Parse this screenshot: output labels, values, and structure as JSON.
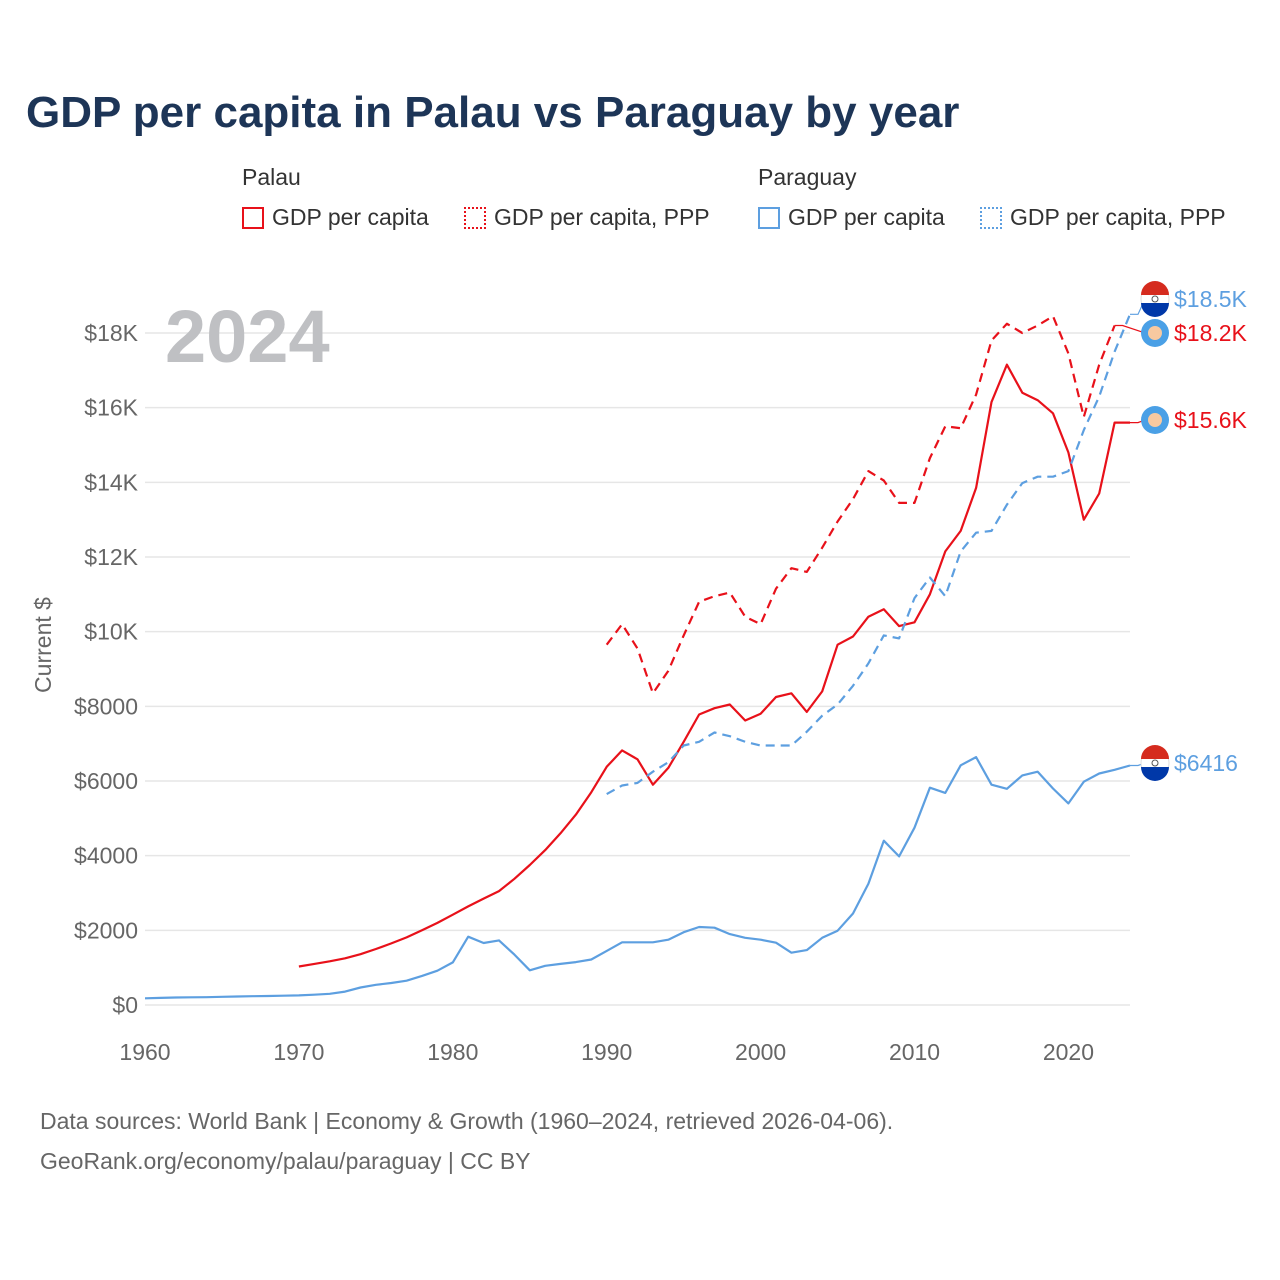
{
  "title": "GDP per capita in Palau vs Paraguay by year",
  "legend": {
    "palau": {
      "label": "Palau",
      "items": [
        {
          "label": "GDP per capita",
          "style": "solid"
        },
        {
          "label": "GDP per capita, PPP",
          "style": "dotted"
        }
      ]
    },
    "paraguay": {
      "label": "Paraguay",
      "items": [
        {
          "label": "GDP per capita",
          "style": "solid"
        },
        {
          "label": "GDP per capita, PPP",
          "style": "dotted"
        }
      ]
    }
  },
  "colors": {
    "palau": "#e8111a",
    "paraguay": "#5d9fe0",
    "grid": "#e6e6e6",
    "year": "#bfc0c3",
    "title": "#1d3557"
  },
  "footer": {
    "line1": "Data sources: World Bank | Economy & Growth (1960–2024, retrieved 2026-04-06).",
    "line2": "GeoRank.org/economy/palau/paraguay | CC BY"
  },
  "chart_data": {
    "type": "line",
    "year_label": "2024",
    "ylabel": "Current $",
    "xlim": [
      1960,
      2024
    ],
    "ylim": [
      0,
      18500
    ],
    "x_ticks": [
      1960,
      1970,
      1980,
      1990,
      2000,
      2010,
      2020
    ],
    "y_ticks": [
      {
        "value": 0,
        "label": "$0"
      },
      {
        "value": 2000,
        "label": "$2000"
      },
      {
        "value": 4000,
        "label": "$4000"
      },
      {
        "value": 6000,
        "label": "$6000"
      },
      {
        "value": 8000,
        "label": "$8000"
      },
      {
        "value": 10000,
        "label": "$10K"
      },
      {
        "value": 12000,
        "label": "$12K"
      },
      {
        "value": 14000,
        "label": "$14K"
      },
      {
        "value": 16000,
        "label": "$16K"
      },
      {
        "value": 18000,
        "label": "$18K"
      }
    ],
    "series": [
      {
        "name": "Palau GDP per capita",
        "country": "palau",
        "dashed": false,
        "end_label": "$15.6K",
        "end_value": 15600,
        "x": [
          1970,
          1971,
          1972,
          1973,
          1974,
          1975,
          1976,
          1977,
          1978,
          1979,
          1980,
          1981,
          1982,
          1983,
          1984,
          1985,
          1986,
          1987,
          1988,
          1989,
          1990,
          1991,
          1992,
          1993,
          1994,
          1995,
          1996,
          1997,
          1998,
          1999,
          2000,
          2001,
          2002,
          2003,
          2004,
          2005,
          2006,
          2007,
          2008,
          2009,
          2010,
          2011,
          2012,
          2013,
          2014,
          2015,
          2016,
          2017,
          2018,
          2019,
          2020,
          2021,
          2022,
          2023,
          2024
        ],
        "y": [
          1030,
          1100,
          1170,
          1250,
          1360,
          1500,
          1650,
          1810,
          2000,
          2200,
          2420,
          2640,
          2850,
          3050,
          3380,
          3750,
          4150,
          4600,
          5100,
          5700,
          6380,
          6820,
          6580,
          5900,
          6350,
          7050,
          7780,
          7950,
          8050,
          7620,
          7800,
          8250,
          8350,
          7850,
          8400,
          9650,
          9870,
          10400,
          10600,
          10150,
          10250,
          11000,
          12150,
          12700,
          13850,
          16150,
          17150,
          16400,
          16200,
          15850,
          14800,
          13000,
          13700,
          15600,
          15600
        ]
      },
      {
        "name": "Palau GDP per capita, PPP",
        "country": "palau",
        "dashed": true,
        "end_label": "$18.2K",
        "end_value": 18200,
        "x": [
          1990,
          1991,
          1992,
          1993,
          1994,
          1995,
          1996,
          1997,
          1998,
          1999,
          2000,
          2001,
          2002,
          2003,
          2004,
          2005,
          2006,
          2007,
          2008,
          2009,
          2010,
          2011,
          2012,
          2013,
          2014,
          2015,
          2016,
          2017,
          2018,
          2019,
          2020,
          2021,
          2022,
          2023
        ],
        "y": [
          9650,
          10200,
          9550,
          8350,
          8950,
          9900,
          10800,
          10950,
          11050,
          10400,
          10200,
          11150,
          11700,
          11600,
          12250,
          12950,
          13550,
          14300,
          14050,
          13450,
          13450,
          14650,
          15500,
          15450,
          16350,
          17800,
          18250,
          18000,
          18200,
          18450,
          17450,
          15750,
          17150,
          18200
        ]
      },
      {
        "name": "Paraguay GDP per capita",
        "country": "paraguay",
        "dashed": false,
        "end_label": "$6416",
        "end_value": 6416,
        "x": [
          1960,
          1961,
          1962,
          1963,
          1964,
          1965,
          1966,
          1967,
          1968,
          1969,
          1970,
          1971,
          1972,
          1973,
          1974,
          1975,
          1976,
          1977,
          1978,
          1979,
          1980,
          1981,
          1982,
          1983,
          1984,
          1985,
          1986,
          1987,
          1988,
          1989,
          1990,
          1991,
          1992,
          1993,
          1994,
          1995,
          1996,
          1997,
          1998,
          1999,
          2000,
          2001,
          2002,
          2003,
          2004,
          2005,
          2006,
          2007,
          2008,
          2009,
          2010,
          2011,
          2012,
          2013,
          2014,
          2015,
          2016,
          2017,
          2018,
          2019,
          2020,
          2021,
          2022,
          2023,
          2024
        ],
        "y": [
          180,
          190,
          200,
          205,
          210,
          220,
          228,
          235,
          240,
          248,
          258,
          275,
          300,
          360,
          470,
          540,
          590,
          650,
          780,
          920,
          1140,
          1830,
          1660,
          1730,
          1350,
          930,
          1050,
          1100,
          1150,
          1220,
          1450,
          1680,
          1680,
          1680,
          1750,
          1950,
          2090,
          2070,
          1900,
          1800,
          1750,
          1670,
          1400,
          1470,
          1800,
          1990,
          2450,
          3250,
          4400,
          3980,
          4750,
          5820,
          5680,
          6420,
          6640,
          5900,
          5790,
          6150,
          6250,
          5800,
          5400,
          5980,
          6200,
          6300,
          6416
        ]
      },
      {
        "name": "Paraguay GDP per capita, PPP",
        "country": "paraguay",
        "dashed": true,
        "end_label": "$18.5K",
        "end_value": 18500,
        "x": [
          1990,
          1991,
          1992,
          1993,
          1994,
          1995,
          1996,
          1997,
          1998,
          1999,
          2000,
          2001,
          2002,
          2003,
          2004,
          2005,
          2006,
          2007,
          2008,
          2009,
          2010,
          2011,
          2012,
          2013,
          2014,
          2015,
          2016,
          2017,
          2018,
          2019,
          2020,
          2021,
          2022,
          2023,
          2024
        ],
        "y": [
          5650,
          5880,
          5950,
          6250,
          6500,
          6950,
          7050,
          7300,
          7200,
          7050,
          6950,
          6950,
          6950,
          7320,
          7750,
          8050,
          8550,
          9150,
          9900,
          9820,
          10900,
          11450,
          10950,
          12150,
          12650,
          12700,
          13400,
          13980,
          14150,
          14150,
          14300,
          15400,
          16300,
          17500,
          18500
        ]
      }
    ]
  }
}
